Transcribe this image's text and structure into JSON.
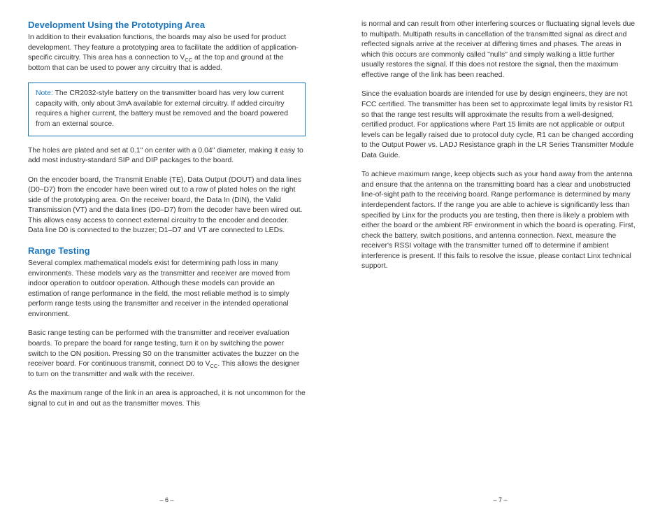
{
  "colors": {
    "heading": "#1b75bb",
    "body": "#333333",
    "note_border": "#1b75bb",
    "background": "#ffffff"
  },
  "typography": {
    "heading_fontsize": 13,
    "body_fontsize": 10.4,
    "pagenum_fontsize": 9,
    "font_family": "Arial, Helvetica, sans-serif",
    "line_height": 1.4
  },
  "left": {
    "heading1": "Development Using the Prototyping Area",
    "p1a": "In addition to their evaluation functions, the boards may also be used for product development. They feature a prototyping area to facilitate the addition of application-specific circuitry. This area has a connection to V",
    "p1_sub": "CC",
    "p1b": " at the top and ground at the bottom that can be used to power any circuitry that is added.",
    "note_label": "Note:",
    "note_body": " The CR2032-style battery on the transmitter board has very low current capacity with, only about 3mA available for external circuitry. If added circuitry requires a higher current, the battery must be removed and the board powered from an external source.",
    "p2": "The holes are plated and set at 0.1\" on center with a 0.04\" diameter, making it easy to add most industry-standard SIP and DIP packages to the board.",
    "p3": "On the encoder board, the Transmit Enable (TE), Data Output (DOUT) and data lines (D0–D7) from the encoder have been wired out to a row of plated holes on the right side of the prototyping area. On the receiver board, the Data In (DIN), the Valid Transmission (VT) and the data lines (D0–D7) from the decoder have been wired out. This allows easy access to connect external circuitry to the encoder and decoder. Data line D0 is connected to the buzzer; D1–D7 and VT are connected to LEDs.",
    "heading2": "Range Testing",
    "p4": "Several complex mathematical models exist for determining path loss in many environments. These models vary as the transmitter and receiver are moved from indoor operation to outdoor operation. Although these models can provide an estimation of range performance in the field, the most reliable method is to simply perform range tests using the transmitter and receiver in the intended operational environment.",
    "p5a": "Basic range testing can be performed with the transmitter and receiver evaluation boards. To prepare the board for range testing, turn it on by switching the power switch to the ON position. Pressing S0 on the transmitter activates the buzzer on the receiver board. For continuous transmit, connect D0 to V",
    "p5_sub": "CC",
    "p5b": ". This allows the designer to turn on the transmitter and walk with the receiver.",
    "p6": "As the maximum range of the link in an area is approached, it is not uncommon for the signal to cut in and out as the transmitter moves. This",
    "pagenum": "– 6 –"
  },
  "right": {
    "p1": "is normal and can result from other interfering sources or fluctuating signal levels due to multipath. Multipath results in cancellation of the transmitted signal as direct and reflected signals arrive at the receiver at differing times and phases. The areas in which this occurs are commonly called \"nulls\" and simply walking a little further usually restores the signal. If this does not restore the signal, then the maximum effective range of the link has been reached.",
    "p2": "Since the evaluation boards are intended for use by design engineers, they are not FCC certified. The transmitter has been set to approximate legal limits by resistor R1 so that the range test results will approximate the results from a well-designed, certified product. For applications where Part 15 limits are not applicable or output levels can be legally raised due to protocol duty cycle, R1 can be changed according to the Output Power vs. LADJ Resistance graph in the LR Series Transmitter Module Data Guide.",
    "p3": "To achieve maximum range, keep objects such as your hand away from the antenna and ensure that the antenna on the transmitting board has a clear and unobstructed line-of-sight path to the receiving board. Range performance is determined by many interdependent factors. If the range you are able to achieve is significantly less than specified by Linx for the products you are testing, then there is likely a problem with either the board or the ambient RF environment in which the board is operating. First, check the battery, switch positions, and antenna connection. Next, measure the receiver's RSSI voltage with the transmitter turned off to determine if ambient interference is present. If this fails to resolve the issue, please contact Linx technical support.",
    "pagenum": "– 7 –"
  }
}
